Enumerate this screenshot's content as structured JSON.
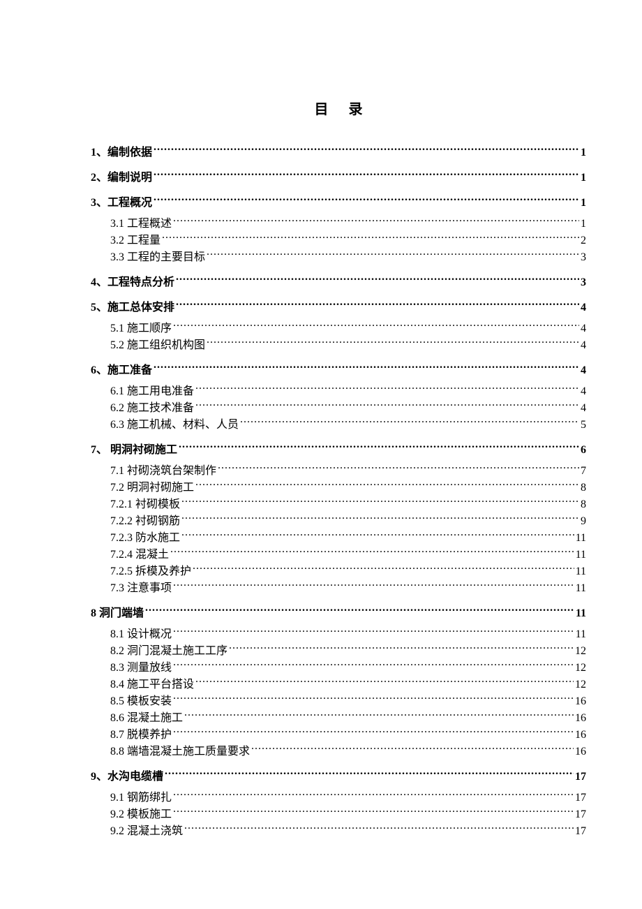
{
  "title": "目 录",
  "entries": [
    {
      "level": 1,
      "label": "1、编制依据 ",
      "page": "1"
    },
    {
      "level": 1,
      "label": "2、编制说明 ",
      "page": "1"
    },
    {
      "level": 1,
      "label": "3、工程概况 ",
      "page": "1"
    },
    {
      "level": 2,
      "label": "3.1 工程概述",
      "page": "1"
    },
    {
      "level": 2,
      "label": "3.2 工程量",
      "page": "2"
    },
    {
      "level": 2,
      "label": "3.3 工程的主要目标",
      "page": "3"
    },
    {
      "level": 1,
      "label": "4、工程特点分析 ",
      "page": "3"
    },
    {
      "level": 1,
      "label": "5、施工总体安排 ",
      "page": "4"
    },
    {
      "level": 2,
      "label": "5.1 施工顺序",
      "page": "4"
    },
    {
      "level": 2,
      "label": "5.2 施工组织机构图",
      "page": "4"
    },
    {
      "level": 1,
      "label": "6、施工准备 ",
      "page": "4"
    },
    {
      "level": 2,
      "label": "6.1 施工用电准备",
      "page": "4"
    },
    {
      "level": 2,
      "label": "6.2 施工技术准备",
      "page": "4"
    },
    {
      "level": 2,
      "label": "6.3 施工机械、材料、人员",
      "page": "5"
    },
    {
      "level": 1,
      "label": "7、 明洞衬砌施工 ",
      "page": "6"
    },
    {
      "level": 2,
      "label": "7.1 衬砌浇筑台架制作",
      "page": "7"
    },
    {
      "level": 2,
      "label": "7.2 明洞衬砌施工",
      "page": "8"
    },
    {
      "level": 2,
      "label": "7.2.1 衬砌模板",
      "page": "8"
    },
    {
      "level": 2,
      "label": "7.2.2 衬砌钢筋",
      "page": "9"
    },
    {
      "level": 2,
      "label": "7.2.3 防水施工",
      "page": "11"
    },
    {
      "level": 2,
      "label": "7.2.4 混凝土",
      "page": "11"
    },
    {
      "level": 2,
      "label": "7.2.5 拆模及养护",
      "page": "11"
    },
    {
      "level": 2,
      "label": "7.3 注意事项",
      "page": "11"
    },
    {
      "level": 1,
      "label": "8 洞门端墙 ",
      "page": "11"
    },
    {
      "level": 2,
      "label": "8.1 设计概况",
      "page": "11"
    },
    {
      "level": 2,
      "label": "8.2 洞门混凝土施工工序",
      "page": "12"
    },
    {
      "level": 2,
      "label": "8.3 测量放线",
      "page": "12"
    },
    {
      "level": 2,
      "label": "8.4 施工平台搭设",
      "page": "12"
    },
    {
      "level": 2,
      "label": "8.5 模板安装",
      "page": "16"
    },
    {
      "level": 2,
      "label": "8.6 混凝土施工",
      "page": "16"
    },
    {
      "level": 2,
      "label": "8.7 脱模养护",
      "page": "16"
    },
    {
      "level": 2,
      "label": "8.8 端墙混凝土施工质量要求",
      "page": "16"
    },
    {
      "level": 1,
      "label": "9、水沟电缆槽 ",
      "page": "17"
    },
    {
      "level": 2,
      "label": "9.1 钢筋绑扎",
      "page": "17"
    },
    {
      "level": 2,
      "label": "9.2 模板施工",
      "page": "17"
    },
    {
      "level": 2,
      "label": "9.2 混凝土浇筑",
      "page": "17"
    }
  ]
}
